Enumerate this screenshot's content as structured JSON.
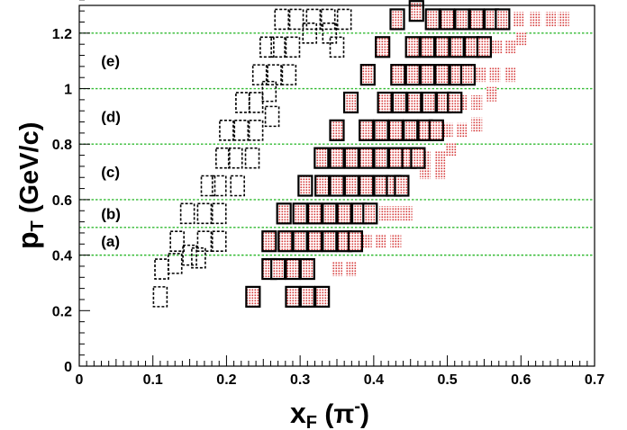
{
  "chart_data": {
    "type": "scatter",
    "title": "",
    "xlabel": {
      "main": "x",
      "sub": "F",
      "tail": " (π",
      "sup": "-",
      "close": ")"
    },
    "ylabel": {
      "main": "p",
      "sub": "T",
      "tail": " (GeV/c)"
    },
    "xlim": [
      0,
      0.7
    ],
    "ylim": [
      0,
      1.3
    ],
    "x_ticks": [
      "0",
      "0.1",
      "0.2",
      "0.3",
      "0.4",
      "0.5",
      "0.6",
      "0.7"
    ],
    "y_ticks": [
      "0",
      "0.2",
      "0.4",
      "0.6",
      "0.8",
      "1",
      "1.2"
    ],
    "x_tick_values": [
      0,
      0.1,
      0.2,
      0.3,
      0.4,
      0.5,
      0.6,
      0.7
    ],
    "y_tick_values": [
      0,
      0.2,
      0.4,
      0.6,
      0.8,
      1.0,
      1.2
    ],
    "pT_bin_edges": [
      0.4,
      0.5,
      0.6,
      0.8,
      1.0,
      1.2
    ],
    "region_labels": [
      {
        "label": "(a)",
        "x": 0.015,
        "y": 0.45
      },
      {
        "label": "(b)",
        "x": 0.015,
        "y": 0.55
      },
      {
        "label": "(c)",
        "x": 0.015,
        "y": 0.7
      },
      {
        "label": "(d)",
        "x": 0.015,
        "y": 0.9
      },
      {
        "label": "(e)",
        "x": 0.015,
        "y": 1.1
      }
    ],
    "colors": {
      "bin_line": "#33bb33",
      "shaded_fill": "#e8a3a3",
      "outline": "#000000"
    },
    "series": [
      {
        "style": "dashed-outline",
        "points": [
          [
            0.11,
            0.25
          ],
          [
            0.112,
            0.35
          ],
          [
            0.13,
            0.37
          ],
          [
            0.133,
            0.45
          ],
          [
            0.147,
            0.55
          ],
          [
            0.15,
            0.4
          ],
          [
            0.162,
            0.39
          ],
          [
            0.17,
            0.45
          ],
          [
            0.17,
            0.55
          ],
          [
            0.175,
            0.65
          ],
          [
            0.19,
            0.45
          ],
          [
            0.19,
            0.55
          ],
          [
            0.19,
            0.65
          ],
          [
            0.195,
            0.75
          ],
          [
            0.2,
            0.85
          ],
          [
            0.212,
            0.75
          ],
          [
            0.215,
            0.65
          ],
          [
            0.22,
            0.85
          ],
          [
            0.222,
            0.95
          ],
          [
            0.235,
            0.75
          ],
          [
            0.24,
            0.85
          ],
          [
            0.24,
            0.95
          ],
          [
            0.245,
            1.05
          ],
          [
            0.255,
            1.15
          ],
          [
            0.258,
            0.99
          ],
          [
            0.262,
            0.9
          ],
          [
            0.265,
            1.05
          ],
          [
            0.27,
            1.15
          ],
          [
            0.275,
            1.25
          ],
          [
            0.285,
            1.05
          ],
          [
            0.29,
            1.15
          ],
          [
            0.295,
            1.25
          ],
          [
            0.313,
            1.2
          ],
          [
            0.318,
            1.25
          ],
          [
            0.338,
            1.25
          ],
          [
            0.34,
            1.2
          ],
          [
            0.35,
            1.15
          ],
          [
            0.36,
            1.25
          ]
        ]
      },
      {
        "style": "solid-outline",
        "points": [
          [
            0.236,
            0.25
          ],
          [
            0.258,
            0.35
          ],
          [
            0.258,
            0.45
          ],
          [
            0.278,
            0.55
          ],
          [
            0.307,
            0.65
          ],
          [
            0.329,
            0.75
          ],
          [
            0.35,
            0.85
          ],
          [
            0.369,
            0.95
          ],
          [
            0.392,
            1.05
          ],
          [
            0.412,
            1.15
          ],
          [
            0.432,
            1.25
          ],
          [
            0.458,
            1.28
          ],
          [
            0.27,
            0.35
          ],
          [
            0.29,
            0.35
          ],
          [
            0.31,
            0.35
          ],
          [
            0.28,
            0.45
          ],
          [
            0.3,
            0.45
          ],
          [
            0.32,
            0.45
          ],
          [
            0.34,
            0.45
          ],
          [
            0.36,
            0.45
          ],
          [
            0.375,
            0.45
          ],
          [
            0.3,
            0.55
          ],
          [
            0.32,
            0.55
          ],
          [
            0.34,
            0.55
          ],
          [
            0.36,
            0.55
          ],
          [
            0.38,
            0.55
          ],
          [
            0.395,
            0.55
          ],
          [
            0.33,
            0.65
          ],
          [
            0.35,
            0.65
          ],
          [
            0.37,
            0.65
          ],
          [
            0.39,
            0.65
          ],
          [
            0.41,
            0.65
          ],
          [
            0.427,
            0.65
          ],
          [
            0.438,
            0.65
          ],
          [
            0.35,
            0.75
          ],
          [
            0.37,
            0.75
          ],
          [
            0.39,
            0.75
          ],
          [
            0.41,
            0.75
          ],
          [
            0.43,
            0.75
          ],
          [
            0.448,
            0.75
          ],
          [
            0.46,
            0.75
          ],
          [
            0.39,
            0.85
          ],
          [
            0.41,
            0.85
          ],
          [
            0.43,
            0.85
          ],
          [
            0.45,
            0.85
          ],
          [
            0.47,
            0.85
          ],
          [
            0.485,
            0.85
          ],
          [
            0.415,
            0.95
          ],
          [
            0.435,
            0.95
          ],
          [
            0.455,
            0.95
          ],
          [
            0.475,
            0.95
          ],
          [
            0.495,
            0.95
          ],
          [
            0.51,
            0.95
          ],
          [
            0.433,
            1.05
          ],
          [
            0.453,
            1.05
          ],
          [
            0.473,
            1.05
          ],
          [
            0.493,
            1.05
          ],
          [
            0.513,
            1.05
          ],
          [
            0.528,
            1.05
          ],
          [
            0.453,
            1.15
          ],
          [
            0.473,
            1.15
          ],
          [
            0.493,
            1.15
          ],
          [
            0.513,
            1.15
          ],
          [
            0.533,
            1.15
          ],
          [
            0.55,
            1.15
          ],
          [
            0.48,
            1.25
          ],
          [
            0.5,
            1.25
          ],
          [
            0.52,
            1.25
          ],
          [
            0.54,
            1.25
          ],
          [
            0.56,
            1.25
          ],
          [
            0.575,
            1.25
          ],
          [
            0.29,
            0.25
          ],
          [
            0.31,
            0.25
          ],
          [
            0.33,
            0.25
          ]
        ]
      },
      {
        "style": "shaded",
        "points": [
          [
            0.35,
            0.35
          ],
          [
            0.37,
            0.35
          ],
          [
            0.39,
            0.45
          ],
          [
            0.41,
            0.45
          ],
          [
            0.43,
            0.45
          ],
          [
            0.415,
            0.55
          ],
          [
            0.43,
            0.55
          ],
          [
            0.445,
            0.55
          ],
          [
            0.47,
            0.7
          ],
          [
            0.49,
            0.7
          ],
          [
            0.47,
            0.75
          ],
          [
            0.49,
            0.75
          ],
          [
            0.505,
            0.78
          ],
          [
            0.5,
            0.85
          ],
          [
            0.52,
            0.85
          ],
          [
            0.54,
            0.87
          ],
          [
            0.52,
            0.95
          ],
          [
            0.54,
            0.95
          ],
          [
            0.56,
            0.98
          ],
          [
            0.545,
            1.05
          ],
          [
            0.565,
            1.05
          ],
          [
            0.585,
            1.05
          ],
          [
            0.568,
            1.15
          ],
          [
            0.585,
            1.15
          ],
          [
            0.6,
            1.18
          ],
          [
            0.597,
            1.25
          ],
          [
            0.62,
            1.25
          ],
          [
            0.64,
            1.25
          ],
          [
            0.658,
            1.25
          ]
        ]
      }
    ]
  }
}
